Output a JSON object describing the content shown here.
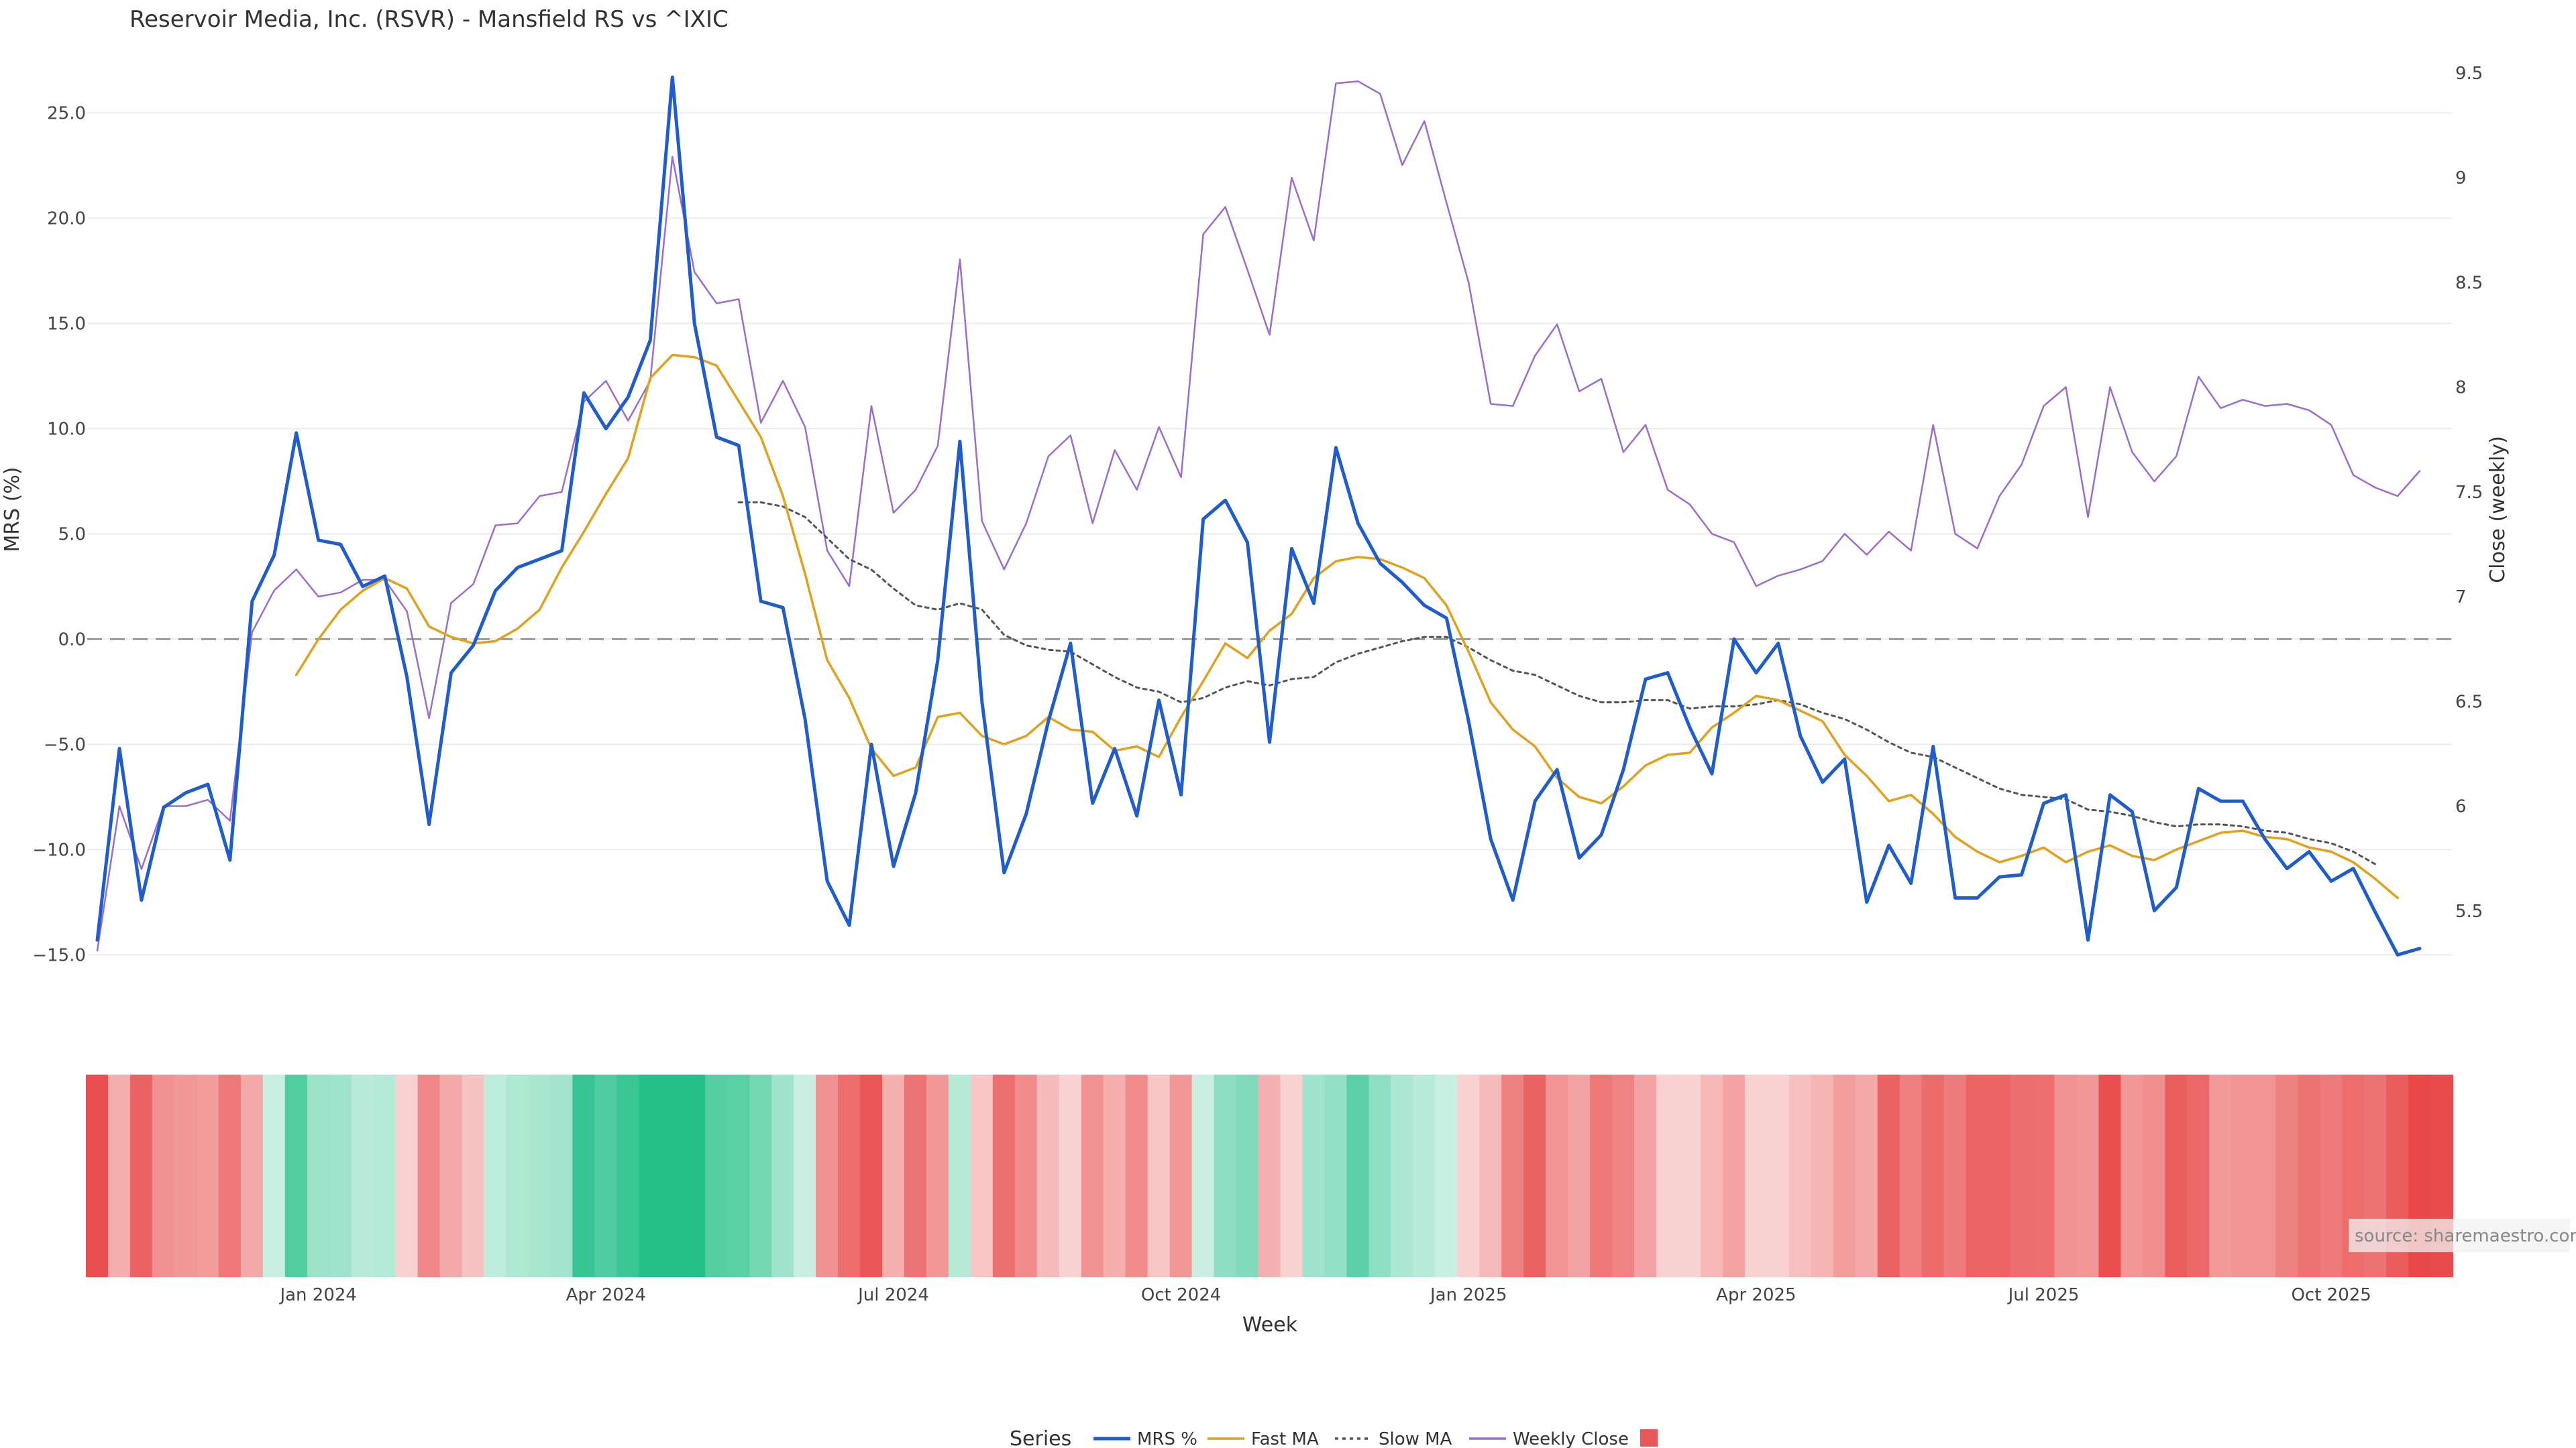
{
  "chart_data": {
    "type": "line",
    "title": "Reservoir Media, Inc. (RSVR) - Mansfield RS vs ^IXIC",
    "xlabel": "Week",
    "ylabel_left": "MRS (%)",
    "ylabel_right": "Close (weekly)",
    "ylim_left": [
      -15.5,
      27.5
    ],
    "ylim_right": [
      5.24,
      9.56
    ],
    "left_ticks": [
      "25.0",
      "20.0",
      "15.0",
      "10.0",
      "5.0",
      "0.0",
      "−5.0",
      "−10.0",
      "−15.0"
    ],
    "left_tick_values": [
      25,
      20,
      15,
      10,
      5,
      0,
      -5,
      -10,
      -15
    ],
    "right_ticks": [
      "9.5",
      "9",
      "8.5",
      "8",
      "7.5",
      "7",
      "6.5",
      "6",
      "5.5"
    ],
    "right_tick_values": [
      9.5,
      9,
      8.5,
      8,
      7.5,
      7,
      6.5,
      6,
      5.5
    ],
    "x_tick_labels": [
      "Jan 2024",
      "Apr 2024",
      "Jul 2024",
      "Oct 2024",
      "Jan 2025",
      "Apr 2025",
      "Jul 2025",
      "Oct 2025"
    ],
    "x_tick_index": [
      10,
      23,
      36,
      49,
      62,
      75,
      88,
      101
    ],
    "zero_line": true,
    "legend_title": "Series",
    "legend_position": "bottom-center",
    "source": "source: sharemaestro.com",
    "series": [
      {
        "name": "MRS %",
        "color": "#1f5ccc",
        "style": "solid",
        "start": 0,
        "values": [
          -14.3,
          -5.2,
          -12.4,
          -8.0,
          -7.3,
          -6.9,
          -10.5,
          1.8,
          4.0,
          9.8,
          4.7,
          4.5,
          2.5,
          3.0,
          -1.8,
          -8.8,
          -1.6,
          -0.3,
          2.3,
          3.4,
          3.8,
          4.2,
          11.7,
          10.0,
          11.5,
          14.2,
          26.7,
          15.0,
          9.6,
          9.2,
          1.8,
          1.5,
          -3.8,
          -11.5,
          -13.6,
          -5.0,
          -10.8,
          -7.3,
          -1.0,
          9.4,
          -3.0,
          -11.1,
          -8.3,
          -3.9,
          -0.2,
          -7.8,
          -5.2,
          -8.4,
          -2.9,
          -7.4,
          5.7,
          6.6,
          4.6,
          -4.9,
          4.3,
          1.7,
          9.1,
          5.5,
          3.6,
          2.7,
          1.6,
          1.0,
          -3.9,
          -9.5,
          -12.4,
          -7.7,
          -6.2,
          -10.4,
          -9.3,
          -6.2,
          -1.9,
          -1.6,
          -4.2,
          -6.4,
          0.0,
          -1.6,
          -0.2,
          -4.6,
          -6.8,
          -5.7,
          -12.5,
          -9.8,
          -11.6,
          -5.1,
          -12.3,
          -12.3,
          -11.3,
          -11.2,
          -7.8,
          -7.4,
          -14.3,
          -7.4,
          -8.2,
          -12.9,
          -11.8,
          -7.1,
          -7.7,
          -7.7,
          -9.5,
          -10.9,
          -10.1,
          -11.5,
          -10.9,
          -13.0,
          -15.0,
          -14.7
        ]
      },
      {
        "name": "Fast MA",
        "color": "#e0a21c",
        "style": "solid",
        "start": 9,
        "values": [
          -1.7,
          0.0,
          1.4,
          2.3,
          2.9,
          2.4,
          0.6,
          0.1,
          -0.2,
          -0.1,
          0.5,
          1.4,
          3.4,
          5.1,
          6.9,
          8.6,
          12.4,
          13.5,
          13.4,
          13.0,
          11.3,
          9.6,
          6.8,
          3.1,
          -1.0,
          -2.8,
          -5.2,
          -6.5,
          -6.1,
          -3.7,
          -3.5,
          -4.6,
          -5.0,
          -4.6,
          -3.7,
          -4.3,
          -4.4,
          -5.3,
          -5.1,
          -5.6,
          -3.7,
          -2.0,
          -0.2,
          -0.9,
          0.4,
          1.2,
          2.9,
          3.7,
          3.9,
          3.8,
          3.4,
          2.9,
          1.6,
          -0.6,
          -3.0,
          -4.3,
          -5.1,
          -6.6,
          -7.5,
          -7.8,
          -7.0,
          -6.0,
          -5.5,
          -5.4,
          -4.2,
          -3.5,
          -2.7,
          -2.9,
          -3.4,
          -3.9,
          -5.5,
          -6.5,
          -7.7,
          -7.4,
          -8.3,
          -9.4,
          -10.1,
          -10.6,
          -10.3,
          -9.9,
          -10.6,
          -10.1,
          -9.8,
          -10.3,
          -10.5,
          -10.0,
          -9.6,
          -9.2,
          -9.1,
          -9.4,
          -9.5,
          -9.9,
          -10.1,
          -10.6,
          -11.4,
          -12.3
        ]
      },
      {
        "name": "Slow MA",
        "color": "#555555",
        "style": "dotted",
        "start": 29,
        "values": [
          6.5,
          6.5,
          6.3,
          5.8,
          4.8,
          3.8,
          3.3,
          2.4,
          1.6,
          1.4,
          1.7,
          1.4,
          0.2,
          -0.3,
          -0.5,
          -0.6,
          -1.2,
          -1.8,
          -2.3,
          -2.5,
          -3.0,
          -2.8,
          -2.3,
          -2.0,
          -2.2,
          -1.9,
          -1.8,
          -1.1,
          -0.7,
          -0.4,
          -0.1,
          0.1,
          0.1,
          -0.4,
          -1.0,
          -1.5,
          -1.7,
          -2.2,
          -2.7,
          -3.0,
          -3.0,
          -2.9,
          -2.9,
          -3.3,
          -3.2,
          -3.2,
          -3.1,
          -2.9,
          -3.1,
          -3.5,
          -3.8,
          -4.3,
          -4.9,
          -5.4,
          -5.6,
          -6.1,
          -6.6,
          -7.1,
          -7.4,
          -7.5,
          -7.6,
          -8.1,
          -8.2,
          -8.4,
          -8.7,
          -8.9,
          -8.8,
          -8.8,
          -8.9,
          -9.1,
          -9.2,
          -9.5,
          -9.7,
          -10.1,
          -10.7
        ]
      },
      {
        "name": "Weekly Close",
        "color": "#9a6dcf",
        "style": "solid",
        "axis": "right",
        "start": 0,
        "values": [
          5.31,
          6.0,
          5.7,
          6.0,
          6.0,
          6.03,
          5.93,
          6.83,
          7.03,
          7.13,
          7.0,
          7.02,
          7.08,
          7.08,
          6.93,
          6.42,
          6.97,
          7.06,
          7.34,
          7.35,
          7.48,
          7.5,
          7.93,
          8.03,
          7.84,
          8.03,
          9.1,
          8.55,
          8.4,
          8.42,
          7.83,
          8.03,
          7.81,
          7.22,
          7.05,
          7.91,
          7.4,
          7.51,
          7.72,
          8.61,
          7.36,
          7.13,
          7.35,
          7.67,
          7.77,
          7.35,
          7.7,
          7.51,
          7.81,
          7.57,
          8.73,
          8.86,
          8.56,
          8.25,
          9.0,
          8.7,
          9.45,
          9.46,
          9.4,
          9.06,
          9.27,
          8.88,
          8.5,
          7.92,
          7.91,
          8.15,
          8.3,
          7.98,
          8.04,
          7.69,
          7.82,
          7.51,
          7.44,
          7.3,
          7.26,
          7.05,
          7.1,
          7.13,
          7.17,
          7.3,
          7.2,
          7.31,
          7.22,
          7.82,
          7.3,
          7.23,
          7.48,
          7.63,
          7.91,
          8.0,
          7.38,
          8.0,
          7.69,
          7.55,
          7.67,
          8.05,
          7.9,
          7.94,
          7.91,
          7.92,
          7.89,
          7.82,
          7.58,
          7.52,
          7.48,
          7.6
        ]
      }
    ],
    "heatstrip_values": [
      -14.3,
      -5.2,
      -12.4,
      -8.0,
      -7.3,
      -6.9,
      -10.5,
      -5.6,
      1.2,
      9.8,
      4.7,
      4.5,
      2.5,
      3.0,
      -1.8,
      -8.8,
      -5.6,
      -3.2,
      2.3,
      3.4,
      3.8,
      4.2,
      11.7,
      10.0,
      11.5,
      14.2,
      26.7,
      15.0,
      9.6,
      9.2,
      7.5,
      4.3,
      1.5,
      -8.0,
      -11.5,
      -13.6,
      -5.0,
      -10.8,
      -7.3,
      2.9,
      -3.0,
      -11.1,
      -8.3,
      -3.9,
      -0.2,
      -7.8,
      -5.2,
      -8.4,
      -2.9,
      -7.4,
      0.2,
      5.7,
      6.6,
      -4.9,
      -0.5,
      4.3,
      5.3,
      9.1,
      5.5,
      3.6,
      2.7,
      1.6,
      -1.0,
      -3.9,
      -9.5,
      -12.4,
      -7.7,
      -6.2,
      -10.4,
      -9.3,
      -6.2,
      -1.9,
      -1.6,
      -4.2,
      -6.4,
      -0.2,
      -1.6,
      -3.5,
      -4.6,
      -6.8,
      -5.7,
      -12.5,
      -9.8,
      -11.6,
      -10.0,
      -12.3,
      -12.3,
      -11.3,
      -11.2,
      -7.8,
      -7.4,
      -14.3,
      -7.4,
      -8.2,
      -12.9,
      -11.8,
      -7.1,
      -7.7,
      -7.7,
      -9.5,
      -10.9,
      -10.1,
      -11.5,
      -10.9,
      -13.0,
      -15.0,
      -14.7
    ]
  }
}
